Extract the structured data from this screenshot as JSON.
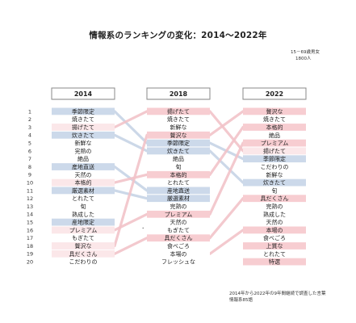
{
  "title": "情報系のランキングの変化：2014〜2022年",
  "sample_note": [
    "15－69歳男女",
    "1800人"
  ],
  "source_note": [
    "2014年から2022年の9年間継続で調査した言葉",
    "情報系85語"
  ],
  "stray_mark": "•",
  "colors": {
    "blue_highlight": "#ccd9ea",
    "pink_highlight": "#f7cdd1",
    "pale_pink": "#fbe7e9",
    "blue_line": "#c7d4e6",
    "pink_line": "#f2c4c9",
    "header_border": "#888888"
  },
  "chart_data": {
    "type": "table",
    "title": "情報系のランキングの変化：2014〜2022年",
    "ranks": [
      1,
      2,
      3,
      4,
      5,
      6,
      7,
      8,
      9,
      10,
      11,
      12,
      13,
      14,
      15,
      16,
      17,
      18,
      19,
      20
    ],
    "columns": [
      {
        "year": "2014",
        "items": [
          {
            "label": "季節限定",
            "hl": "blue"
          },
          {
            "label": "焼きたて",
            "hl": "none"
          },
          {
            "label": "揚げたて",
            "hl": "palepink"
          },
          {
            "label": "炊きたて",
            "hl": "blue"
          },
          {
            "label": "新鮮な",
            "hl": "none"
          },
          {
            "label": "完熟の",
            "hl": "none"
          },
          {
            "label": "絶品",
            "hl": "none"
          },
          {
            "label": "産地直送",
            "hl": "blue"
          },
          {
            "label": "天然の",
            "hl": "none"
          },
          {
            "label": "本格的",
            "hl": "palepink"
          },
          {
            "label": "厳選素材",
            "hl": "blue"
          },
          {
            "label": "とれたて",
            "hl": "none"
          },
          {
            "label": "旬",
            "hl": "none"
          },
          {
            "label": "熟成した",
            "hl": "none"
          },
          {
            "label": "産地限定",
            "hl": "blue"
          },
          {
            "label": "プレミアム",
            "hl": "palepink"
          },
          {
            "label": "もぎたて",
            "hl": "none"
          },
          {
            "label": "贅沢な",
            "hl": "palepink"
          },
          {
            "label": "具だくさん",
            "hl": "palepink"
          },
          {
            "label": "こだわりの",
            "hl": "none"
          }
        ]
      },
      {
        "year": "2018",
        "items": [
          {
            "label": "揚げたて",
            "hl": "pink"
          },
          {
            "label": "焼きたて",
            "hl": "none"
          },
          {
            "label": "新鮮な",
            "hl": "none"
          },
          {
            "label": "贅沢な",
            "hl": "pink"
          },
          {
            "label": "季節限定",
            "hl": "blue"
          },
          {
            "label": "炊きたて",
            "hl": "blue"
          },
          {
            "label": "絶品",
            "hl": "none"
          },
          {
            "label": "旬",
            "hl": "none"
          },
          {
            "label": "本格的",
            "hl": "pink"
          },
          {
            "label": "とれたて",
            "hl": "none"
          },
          {
            "label": "産地直送",
            "hl": "blue"
          },
          {
            "label": "厳選素材",
            "hl": "blue"
          },
          {
            "label": "完熟の",
            "hl": "none"
          },
          {
            "label": "プレミアム",
            "hl": "pink"
          },
          {
            "label": "天然の",
            "hl": "none"
          },
          {
            "label": "もぎたて",
            "hl": "none"
          },
          {
            "label": "具だくさん",
            "hl": "pink"
          },
          {
            "label": "食べごろ",
            "hl": "none"
          },
          {
            "label": "本場の",
            "hl": "none"
          },
          {
            "label": "フレッシュな",
            "hl": "none"
          }
        ]
      },
      {
        "year": "2022",
        "items": [
          {
            "label": "贅沢な",
            "hl": "pink"
          },
          {
            "label": "焼きたて",
            "hl": "none"
          },
          {
            "label": "本格的",
            "hl": "pink"
          },
          {
            "label": "絶品",
            "hl": "none"
          },
          {
            "label": "プレミアム",
            "hl": "pink"
          },
          {
            "label": "揚げたて",
            "hl": "palepink"
          },
          {
            "label": "季節限定",
            "hl": "blue"
          },
          {
            "label": "こだわりの",
            "hl": "none"
          },
          {
            "label": "新鮮な",
            "hl": "none"
          },
          {
            "label": "炊きたて",
            "hl": "blue"
          },
          {
            "label": "旬",
            "hl": "none"
          },
          {
            "label": "具だくさん",
            "hl": "pink"
          },
          {
            "label": "完熟の",
            "hl": "none"
          },
          {
            "label": "熟成した",
            "hl": "none"
          },
          {
            "label": "天然の",
            "hl": "none"
          },
          {
            "label": "本場の",
            "hl": "pink"
          },
          {
            "label": "食べごろ",
            "hl": "none"
          },
          {
            "label": "上質な",
            "hl": "pink"
          },
          {
            "label": "とれたて",
            "hl": "none"
          },
          {
            "label": "特選",
            "hl": "pink"
          }
        ]
      }
    ]
  }
}
